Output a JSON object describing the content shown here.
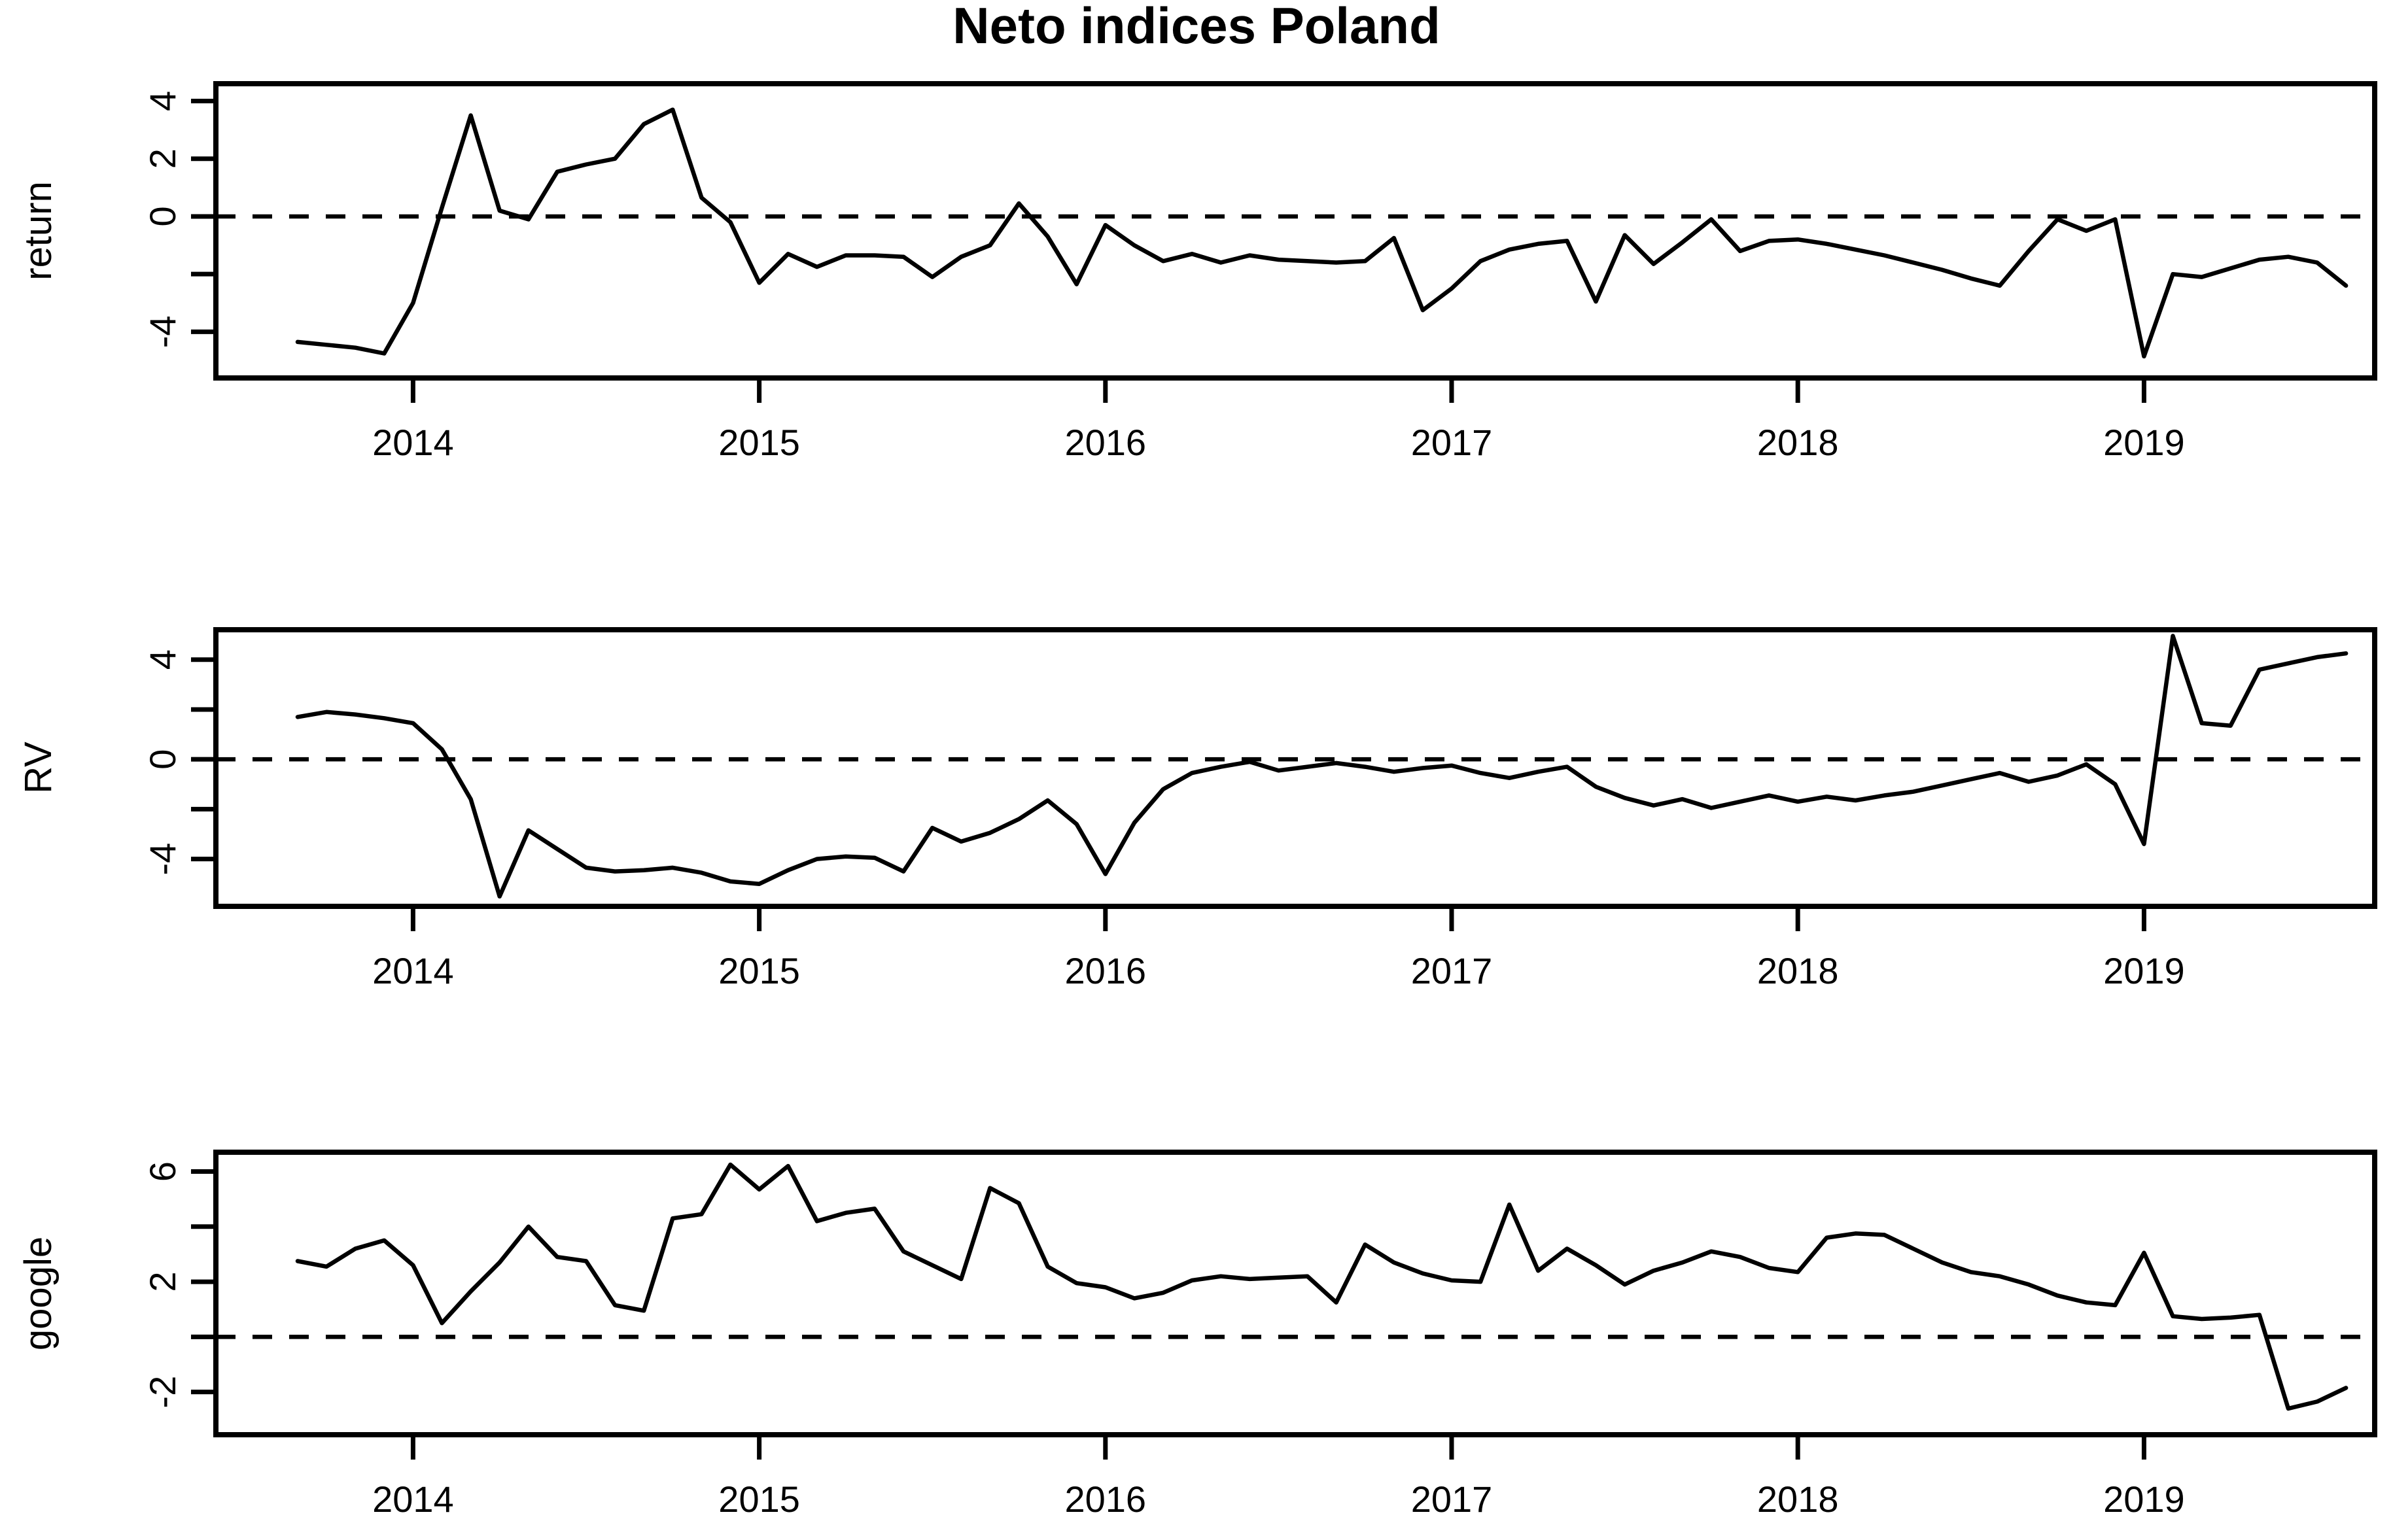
{
  "title": "Neto indices Poland",
  "background": "#ffffff",
  "line_color": "#000000",
  "chart_data": [
    {
      "type": "line",
      "name": "return",
      "ylabel": "return",
      "title": "",
      "xlabel": "",
      "x_monthly_start": "2013-09",
      "x_monthly_end": "2019-08",
      "x_tick_labels": [
        "2014",
        "2015",
        "2016",
        "2017",
        "2018",
        "2019"
      ],
      "x_tick_month_index": [
        4,
        16,
        28,
        40,
        52,
        64
      ],
      "y_ticks": [
        4,
        2,
        0,
        -2,
        -4
      ],
      "y_tick_labels": [
        "4",
        "2",
        "0",
        "",
        "-4"
      ],
      "ylim": [
        -5.6,
        4.6
      ],
      "grid": false,
      "dashed_zero_line": true,
      "values": [
        -4.35,
        -4.45,
        -4.55,
        -4.75,
        -3.0,
        0.3,
        3.5,
        0.2,
        -0.1,
        1.55,
        1.8,
        2.0,
        3.2,
        3.7,
        0.65,
        -0.2,
        -2.3,
        -1.3,
        -1.75,
        -1.35,
        -1.35,
        -1.4,
        -2.1,
        -1.4,
        -1.0,
        0.45,
        -0.7,
        -2.35,
        -0.3,
        -1.0,
        -1.55,
        -1.3,
        -1.6,
        -1.35,
        -1.5,
        -1.55,
        -1.6,
        -1.55,
        -0.75,
        -3.25,
        -2.5,
        -1.55,
        -1.15,
        -0.95,
        -0.85,
        -2.95,
        -0.65,
        -1.65,
        -0.9,
        -0.1,
        -1.2,
        -0.85,
        -0.8,
        -0.95,
        -1.15,
        -1.35,
        -1.6,
        -1.85,
        -2.15,
        -2.4,
        -1.2,
        -0.1,
        -0.5,
        -0.1,
        -4.85,
        -2.0,
        -2.1,
        -1.8,
        -1.5,
        -1.4,
        -1.6,
        -2.4
      ]
    },
    {
      "type": "line",
      "name": "RV",
      "ylabel": "RV",
      "title": "",
      "xlabel": "",
      "x_monthly_start": "2013-09",
      "x_monthly_end": "2019-08",
      "x_tick_labels": [
        "2014",
        "2015",
        "2016",
        "2017",
        "2018",
        "2019"
      ],
      "x_tick_month_index": [
        4,
        16,
        28,
        40,
        52,
        64
      ],
      "y_ticks": [
        4,
        2,
        0,
        -2,
        -4
      ],
      "y_tick_labels": [
        "4",
        "",
        "0",
        "",
        "-4"
      ],
      "ylim": [
        -5.9,
        5.2
      ],
      "grid": false,
      "dashed_zero_line": true,
      "values": [
        1.7,
        1.9,
        1.8,
        1.65,
        1.45,
        0.4,
        -1.6,
        -5.5,
        -2.85,
        -3.6,
        -4.35,
        -4.5,
        -4.45,
        -4.35,
        -4.55,
        -4.9,
        -5.0,
        -4.45,
        -4.0,
        -3.9,
        -3.95,
        -4.5,
        -2.75,
        -3.3,
        -2.95,
        -2.4,
        -1.65,
        -2.6,
        -4.6,
        -2.55,
        -1.2,
        -0.55,
        -0.3,
        -0.1,
        -0.45,
        -0.3,
        -0.15,
        -0.3,
        -0.5,
        -0.35,
        -0.25,
        -0.55,
        -0.75,
        -0.5,
        -0.3,
        -1.1,
        -1.55,
        -1.85,
        -1.6,
        -1.95,
        -1.7,
        -1.45,
        -1.7,
        -1.5,
        -1.65,
        -1.45,
        -1.3,
        -1.05,
        -0.8,
        -0.55,
        -0.9,
        -0.65,
        -0.2,
        -1.0,
        -3.4,
        4.95,
        1.45,
        1.35,
        3.6,
        3.85,
        4.1,
        4.25
      ]
    },
    {
      "type": "line",
      "name": "google",
      "ylabel": "google",
      "title": "",
      "xlabel": "",
      "x_monthly_start": "2013-09",
      "x_monthly_end": "2019-08",
      "x_tick_labels": [
        "2014",
        "2015",
        "2016",
        "2017",
        "2018",
        "2019"
      ],
      "x_tick_month_index": [
        4,
        16,
        28,
        40,
        52,
        64
      ],
      "y_ticks": [
        6,
        4,
        2,
        0,
        -2
      ],
      "y_tick_labels": [
        "6",
        "",
        "2",
        "",
        "-2"
      ],
      "ylim": [
        -3.55,
        6.7
      ],
      "grid": false,
      "dashed_zero_line": true,
      "values": [
        2.75,
        2.55,
        3.2,
        3.5,
        2.6,
        0.5,
        1.65,
        2.7,
        4.0,
        2.9,
        2.75,
        1.15,
        0.95,
        4.3,
        4.45,
        6.25,
        5.35,
        6.2,
        4.2,
        4.5,
        4.65,
        3.1,
        2.6,
        2.1,
        5.4,
        4.85,
        2.55,
        1.95,
        1.8,
        1.4,
        1.6,
        2.05,
        2.2,
        2.1,
        2.15,
        2.2,
        1.25,
        3.35,
        2.7,
        2.3,
        2.05,
        2.0,
        4.8,
        2.4,
        3.2,
        2.6,
        1.9,
        2.4,
        2.7,
        3.1,
        2.9,
        2.5,
        2.35,
        3.6,
        3.75,
        3.7,
        3.2,
        2.7,
        2.35,
        2.2,
        1.9,
        1.5,
        1.25,
        1.15,
        3.05,
        0.75,
        0.65,
        0.7,
        0.8,
        -2.6,
        -2.35,
        -1.85
      ]
    }
  ]
}
